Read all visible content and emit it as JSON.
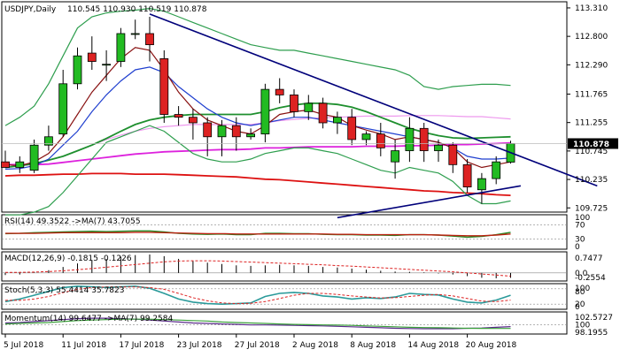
{
  "chart_data": {
    "type": "candlestick",
    "symbol_label": "USDJPY,Daily",
    "ohlc_header": "110.545 110.930 110.519 110.878",
    "last_price_label": "110.878",
    "colors": {
      "up_candle": "#22bb22",
      "down_candle": "#dd2222",
      "price_tag": "#000000",
      "trendline": "#00007a",
      "envelope": "#2e9e4e",
      "ema_fast": "#881111",
      "ema_blue": "#1f3fcf",
      "ema_green": "#1e8f2e",
      "ema_magenta": "#dd22dd",
      "ema_pink": "#ee99ee",
      "ema_red": "#dd1111",
      "rsi": "#228822",
      "rsi_ma": "#bb2211",
      "macd_hist": "#000000",
      "macd_signal": "#dd2222",
      "stoch_main": "#2a9a9a",
      "stoch_signal": "#dd2222",
      "momentum": "#5a2a8a",
      "momentum_ma": "#3aa03a"
    },
    "price_axis": {
      "ticks": [
        "113.310",
        "112.800",
        "112.290",
        "111.765",
        "111.255",
        "110.745",
        "110.235",
        "109.725"
      ],
      "ylim": [
        109.65,
        113.42
      ]
    },
    "x_axis": {
      "ticks": [
        {
          "label": "5 Jul 2018",
          "i": 0
        },
        {
          "label": "11 Jul 2018",
          "i": 4
        },
        {
          "label": "17 Jul 2018",
          "i": 8
        },
        {
          "label": "23 Jul 2018",
          "i": 12
        },
        {
          "label": "27 Jul 2018",
          "i": 16
        },
        {
          "label": "2 Aug 2018",
          "i": 20
        },
        {
          "label": "8 Aug 2018",
          "i": 24
        },
        {
          "label": "14 Aug 2018",
          "i": 28
        },
        {
          "label": "20 Aug 2018",
          "i": 32
        }
      ]
    },
    "candles": [
      {
        "o": 110.55,
        "h": 110.75,
        "l": 110.45,
        "c": 110.45
      },
      {
        "o": 110.45,
        "h": 110.65,
        "l": 110.35,
        "c": 110.55
      },
      {
        "o": 110.4,
        "h": 110.95,
        "l": 110.35,
        "c": 110.85
      },
      {
        "o": 110.85,
        "h": 111.2,
        "l": 110.75,
        "c": 111.0
      },
      {
        "o": 111.05,
        "h": 112.2,
        "l": 111.0,
        "c": 111.95
      },
      {
        "o": 111.95,
        "h": 112.6,
        "l": 111.85,
        "c": 112.45
      },
      {
        "o": 112.5,
        "h": 112.8,
        "l": 112.2,
        "c": 112.35
      },
      {
        "o": 112.3,
        "h": 112.55,
        "l": 112.0,
        "c": 112.3
      },
      {
        "o": 112.35,
        "h": 112.95,
        "l": 112.25,
        "c": 112.85
      },
      {
        "o": 112.85,
        "h": 113.1,
        "l": 112.75,
        "c": 112.85
      },
      {
        "o": 112.85,
        "h": 113.15,
        "l": 112.35,
        "c": 112.65
      },
      {
        "o": 112.4,
        "h": 112.55,
        "l": 111.25,
        "c": 111.4
      },
      {
        "o": 111.4,
        "h": 111.55,
        "l": 111.2,
        "c": 111.35
      },
      {
        "o": 111.35,
        "h": 111.5,
        "l": 110.95,
        "c": 111.25
      },
      {
        "o": 111.25,
        "h": 111.35,
        "l": 110.65,
        "c": 111.0
      },
      {
        "o": 111.0,
        "h": 111.3,
        "l": 110.65,
        "c": 111.2
      },
      {
        "o": 111.2,
        "h": 111.35,
        "l": 110.75,
        "c": 111.0
      },
      {
        "o": 111.0,
        "h": 111.15,
        "l": 110.95,
        "c": 111.05
      },
      {
        "o": 111.05,
        "h": 111.95,
        "l": 110.9,
        "c": 111.85
      },
      {
        "o": 111.85,
        "h": 112.05,
        "l": 111.6,
        "c": 111.75
      },
      {
        "o": 111.75,
        "h": 111.85,
        "l": 111.35,
        "c": 111.45
      },
      {
        "o": 111.45,
        "h": 111.75,
        "l": 111.3,
        "c": 111.6
      },
      {
        "o": 111.6,
        "h": 111.7,
        "l": 111.15,
        "c": 111.25
      },
      {
        "o": 111.25,
        "h": 111.45,
        "l": 111.05,
        "c": 111.35
      },
      {
        "o": 111.35,
        "h": 111.5,
        "l": 110.85,
        "c": 110.95
      },
      {
        "o": 110.95,
        "h": 111.1,
        "l": 110.85,
        "c": 111.05
      },
      {
        "o": 111.05,
        "h": 111.25,
        "l": 110.65,
        "c": 110.8
      },
      {
        "o": 110.55,
        "h": 110.95,
        "l": 110.25,
        "c": 110.75
      },
      {
        "o": 110.75,
        "h": 111.35,
        "l": 110.55,
        "c": 111.15
      },
      {
        "o": 111.15,
        "h": 111.25,
        "l": 110.55,
        "c": 110.75
      },
      {
        "o": 110.75,
        "h": 110.95,
        "l": 110.55,
        "c": 110.85
      },
      {
        "o": 110.85,
        "h": 110.9,
        "l": 110.35,
        "c": 110.5
      },
      {
        "o": 110.5,
        "h": 110.6,
        "l": 110.0,
        "c": 110.1
      },
      {
        "o": 110.05,
        "h": 110.35,
        "l": 109.8,
        "c": 110.25
      },
      {
        "o": 110.25,
        "h": 110.65,
        "l": 110.15,
        "c": 110.55
      },
      {
        "o": 110.545,
        "h": 110.93,
        "l": 110.519,
        "c": 110.878
      }
    ],
    "overlays": [
      {
        "key": "ema_magenta",
        "values": [
          110.5,
          110.5,
          110.5,
          110.51,
          110.54,
          110.57,
          110.6,
          110.63,
          110.66,
          110.69,
          110.71,
          110.73,
          110.74,
          110.75,
          110.76,
          110.77,
          110.77,
          110.78,
          110.8,
          110.8,
          110.81,
          110.82,
          110.82,
          110.82,
          110.82,
          110.83,
          110.83,
          110.83,
          110.84,
          110.84,
          110.85,
          110.86,
          110.86,
          110.87,
          110.88,
          110.89
        ]
      },
      {
        "key": "ema_red",
        "values": [
          110.3,
          110.31,
          110.31,
          110.32,
          110.33,
          110.33,
          110.34,
          110.34,
          110.34,
          110.33,
          110.33,
          110.33,
          110.32,
          110.31,
          110.3,
          110.29,
          110.28,
          110.26,
          110.24,
          110.23,
          110.21,
          110.19,
          110.17,
          110.15,
          110.13,
          110.11,
          110.09,
          110.07,
          110.05,
          110.03,
          110.02,
          110.0,
          109.99,
          109.98,
          109.96,
          109.95
        ]
      },
      {
        "key": "ema_pink",
        "values": [
          110.45,
          110.48,
          110.52,
          110.58,
          110.65,
          110.75,
          110.85,
          110.95,
          111.03,
          111.1,
          111.15,
          111.18,
          111.2,
          111.22,
          111.22,
          111.22,
          111.22,
          111.22,
          111.25,
          111.29,
          111.31,
          111.33,
          111.34,
          111.35,
          111.36,
          111.37,
          111.37,
          111.37,
          111.38,
          111.38,
          111.38,
          111.37,
          111.36,
          111.36,
          111.34,
          111.32
        ]
      },
      {
        "key": "ema_green",
        "values": [
          110.45,
          110.48,
          110.52,
          110.58,
          110.65,
          110.75,
          110.85,
          110.97,
          111.1,
          111.22,
          111.3,
          111.35,
          111.38,
          111.4,
          111.4,
          111.4,
          111.4,
          111.4,
          111.45,
          111.52,
          111.57,
          111.6,
          111.6,
          111.58,
          111.53,
          111.45,
          111.35,
          111.25,
          111.15,
          111.08,
          111.02,
          110.98,
          110.97,
          110.98,
          110.99,
          111.0
        ]
      },
      {
        "key": "ema_blue",
        "values": [
          110.42,
          110.43,
          110.48,
          110.6,
          110.85,
          111.1,
          111.45,
          111.75,
          112.0,
          112.2,
          112.25,
          112.15,
          111.9,
          111.7,
          111.5,
          111.35,
          111.25,
          111.2,
          111.25,
          111.3,
          111.35,
          111.35,
          111.3,
          111.25,
          111.2,
          111.15,
          111.1,
          111.05,
          111.0,
          110.95,
          110.9,
          110.8,
          110.65,
          110.6,
          110.6,
          110.62
        ]
      },
      {
        "key": "ema_fast",
        "values": [
          110.5,
          110.48,
          110.55,
          110.7,
          111.0,
          111.4,
          111.8,
          112.1,
          112.4,
          112.6,
          112.55,
          112.2,
          111.8,
          111.5,
          111.3,
          111.2,
          111.1,
          111.05,
          111.2,
          111.4,
          111.45,
          111.48,
          111.4,
          111.35,
          111.2,
          111.12,
          111.05,
          110.95,
          111.0,
          110.95,
          110.9,
          110.8,
          110.55,
          110.45,
          110.5,
          110.55
        ]
      },
      {
        "key": "envelope",
        "values": [
          109.6,
          109.6,
          109.65,
          109.75,
          110.0,
          110.3,
          110.6,
          110.9,
          111.0,
          111.1,
          111.2,
          111.1,
          110.9,
          110.7,
          110.6,
          110.55,
          110.55,
          110.6,
          110.7,
          110.75,
          110.8,
          110.8,
          110.75,
          110.7,
          110.6,
          110.5,
          110.4,
          110.35,
          110.45,
          110.4,
          110.35,
          110.2,
          109.95,
          109.8,
          109.8,
          109.85
        ]
      },
      {
        "key": "envelope",
        "values": [
          111.2,
          111.35,
          111.55,
          111.95,
          112.45,
          112.95,
          113.15,
          113.22,
          113.25,
          113.27,
          113.3,
          113.25,
          113.15,
          113.05,
          112.95,
          112.85,
          112.75,
          112.65,
          112.6,
          112.55,
          112.55,
          112.5,
          112.45,
          112.4,
          112.35,
          112.3,
          112.25,
          112.2,
          112.1,
          111.9,
          111.85,
          111.9,
          111.92,
          111.94,
          111.94,
          111.92
        ]
      }
    ],
    "trendlines": [
      {
        "x1": 10,
        "y1": 113.2,
        "x2": 41,
        "y2": 110.12
      },
      {
        "x1": 23,
        "y1": 109.55,
        "x2": 35.7,
        "y2": 110.12
      }
    ],
    "rsi": {
      "label": "RSI(14) 49.3522 ->MA(7) 43.7055",
      "ticks": [
        "100",
        "70",
        "30",
        "0"
      ],
      "ylim": [
        0,
        100
      ],
      "levels": [
        70,
        30
      ],
      "values": [
        45,
        46,
        48,
        49,
        50,
        51,
        52,
        51,
        52,
        53,
        53,
        50,
        46,
        44,
        43,
        44,
        42,
        42,
        46,
        46,
        45,
        45,
        43,
        42,
        42,
        41,
        41,
        40,
        42,
        42,
        41,
        38,
        35,
        37,
        42,
        49
      ],
      "ma": [
        46,
        46,
        46,
        47,
        48,
        48,
        48,
        48,
        48,
        49,
        49,
        48,
        47,
        46,
        45,
        45,
        44,
        44,
        44,
        44,
        44,
        44,
        44,
        43,
        43,
        42,
        42,
        42,
        42,
        42,
        41,
        40,
        39,
        39,
        41,
        44
      ]
    },
    "macd": {
      "label": "MACD(12,26,9) -0.1815 -0.1226",
      "ticks": [
        "0.7477",
        "0.0",
        "-0.2554"
      ],
      "ylim": [
        -0.3,
        0.78
      ],
      "hist": [
        -0.08,
        -0.06,
        0.02,
        0.1,
        0.22,
        0.35,
        0.46,
        0.52,
        0.6,
        0.66,
        0.68,
        0.62,
        0.52,
        0.44,
        0.38,
        0.33,
        0.28,
        0.26,
        0.28,
        0.3,
        0.28,
        0.26,
        0.22,
        0.2,
        0.16,
        0.12,
        0.08,
        0.05,
        0.04,
        0.02,
        -0.02,
        -0.06,
        -0.12,
        -0.18,
        -0.2,
        -0.18
      ],
      "signal": [
        0.02,
        0.02,
        0.03,
        0.05,
        0.08,
        0.12,
        0.16,
        0.21,
        0.26,
        0.31,
        0.36,
        0.41,
        0.44,
        0.45,
        0.45,
        0.44,
        0.42,
        0.4,
        0.38,
        0.36,
        0.34,
        0.32,
        0.3,
        0.27,
        0.25,
        0.22,
        0.19,
        0.16,
        0.13,
        0.1,
        0.07,
        0.04,
        0.0,
        -0.04,
        -0.08,
        -0.12
      ]
    },
    "stochastic": {
      "label": "Stoch(5,3,3) 55.4414 35.7823",
      "ticks": [
        "100",
        "80",
        "20",
        "0"
      ],
      "ylim": [
        0,
        100
      ],
      "levels": [
        80,
        20
      ],
      "main": [
        30,
        40,
        55,
        70,
        85,
        90,
        88,
        85,
        88,
        90,
        82,
        62,
        40,
        28,
        22,
        20,
        22,
        25,
        50,
        62,
        66,
        62,
        52,
        48,
        40,
        45,
        42,
        48,
        62,
        58,
        56,
        40,
        28,
        25,
        36,
        55
      ],
      "signal": [
        35,
        35,
        40,
        50,
        65,
        78,
        85,
        87,
        87,
        87,
        85,
        78,
        62,
        45,
        33,
        25,
        22,
        23,
        30,
        42,
        55,
        62,
        62,
        58,
        52,
        48,
        44,
        45,
        50,
        55,
        58,
        52,
        42,
        32,
        30,
        36
      ]
    },
    "momentum": {
      "label": "Momentum(14) 99.6477 ->MA(7) 99.2584",
      "ticks": [
        "102.5727",
        "100",
        "98.1955"
      ],
      "ylim": [
        98.1,
        102.7
      ],
      "level": 100,
      "values": [
        100.4,
        100.5,
        100.7,
        100.9,
        101.1,
        101.3,
        101.4,
        101.4,
        101.3,
        101.2,
        101.0,
        100.8,
        100.6,
        100.4,
        100.3,
        100.2,
        100.1,
        100.0,
        100.0,
        99.95,
        99.9,
        99.85,
        99.8,
        99.7,
        99.6,
        99.5,
        99.4,
        99.3,
        99.25,
        99.2,
        99.2,
        99.2,
        99.3,
        99.35,
        99.5,
        99.65
      ],
      "ma": [
        100.2,
        100.3,
        100.4,
        100.5,
        100.7,
        100.9,
        101.0,
        101.1,
        101.2,
        101.2,
        101.2,
        101.1,
        101.0,
        100.9,
        100.8,
        100.6,
        100.5,
        100.4,
        100.3,
        100.2,
        100.1,
        100.05,
        100.0,
        99.95,
        99.9,
        99.8,
        99.7,
        99.6,
        99.5,
        99.45,
        99.4,
        99.35,
        99.3,
        99.28,
        99.26,
        99.26
      ]
    }
  }
}
